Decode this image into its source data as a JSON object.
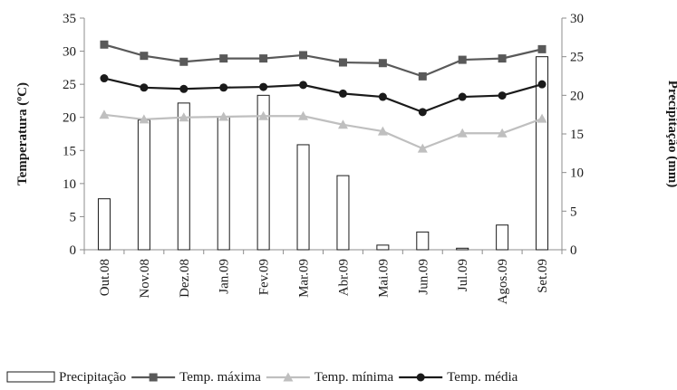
{
  "chart_data": {
    "type": "bar+line",
    "categories": [
      "Out.08",
      "Nov.08",
      "Dez.08",
      "Jan.09",
      "Fev.09",
      "Mar.09",
      "Abr.09",
      "Mai.09",
      "Jun.09",
      "Jul.09",
      "Agos.09",
      "Set.09"
    ],
    "ylabel_left": "Temperatura (ºC)",
    "ylabel_right": "Precipitação (mm)",
    "ylim_left": [
      0,
      35
    ],
    "ylim_right": [
      0,
      30
    ],
    "yticks_left": [
      0,
      5,
      10,
      15,
      20,
      25,
      30,
      35
    ],
    "yticks_right": [
      0,
      5,
      10,
      15,
      20,
      25,
      30
    ],
    "grid": false,
    "legend_position": "bottom",
    "series": [
      {
        "name": "Precipitação",
        "type": "bar",
        "axis": "right",
        "color": "#1a1a1a",
        "fill": "#ffffff",
        "values": [
          6.6,
          16.8,
          19.0,
          17.2,
          20.0,
          13.6,
          9.6,
          0.6,
          2.3,
          0.2,
          3.2,
          25.0
        ]
      },
      {
        "name": "Temp. máxima",
        "type": "line",
        "axis": "left",
        "marker": "square",
        "color": "#595959",
        "values": [
          31.0,
          29.3,
          28.4,
          28.9,
          28.9,
          29.4,
          28.3,
          28.2,
          26.2,
          28.7,
          28.9,
          30.3
        ]
      },
      {
        "name": "Temp. mínima",
        "type": "line",
        "axis": "left",
        "marker": "triangle",
        "color": "#bfbfbf",
        "values": [
          20.4,
          19.7,
          20.0,
          20.1,
          20.2,
          20.2,
          18.9,
          17.9,
          15.3,
          17.6,
          17.6,
          19.8
        ]
      },
      {
        "name": "Temp. média",
        "type": "line",
        "axis": "left",
        "marker": "circle",
        "color": "#1a1a1a",
        "values": [
          25.9,
          24.5,
          24.3,
          24.5,
          24.6,
          24.9,
          23.6,
          23.1,
          20.8,
          23.1,
          23.3,
          25.0
        ]
      }
    ]
  }
}
